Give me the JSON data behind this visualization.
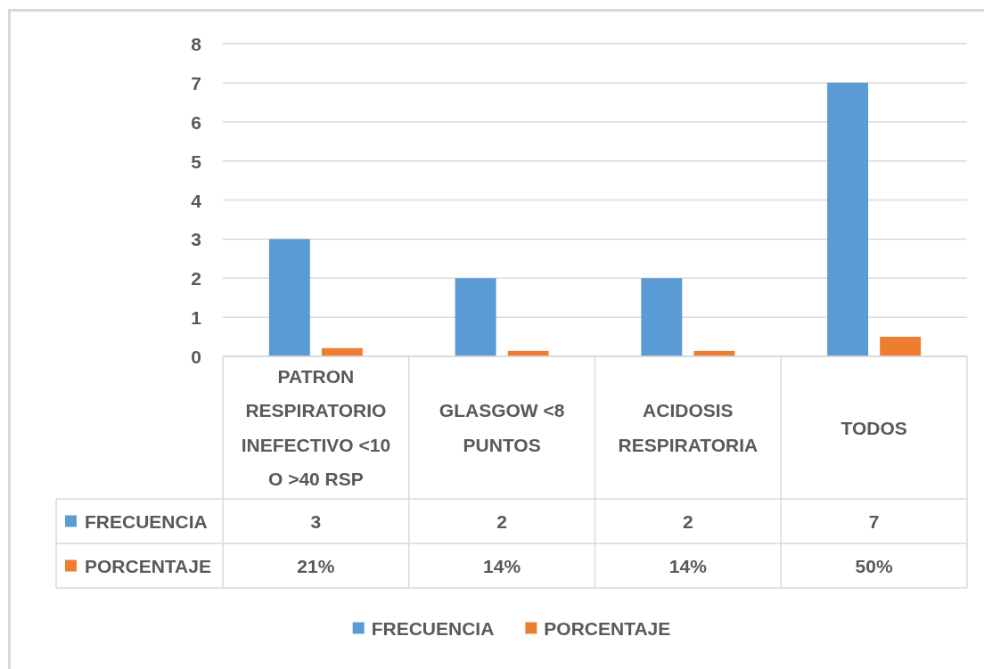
{
  "chart_data": {
    "type": "bar",
    "categories": [
      "PATRON RESPIRATORIO INEFECTIVO <10 O >40 RSP",
      "GLASGOW <8 PUNTOS",
      "ACIDOSIS RESPIRATORIA",
      "TODOS"
    ],
    "series": [
      {
        "name": "FRECUENCIA",
        "color": "#5b9bd5",
        "values": [
          3,
          2,
          2,
          7
        ],
        "value_labels": [
          "3",
          "2",
          "2",
          "7"
        ]
      },
      {
        "name": "PORCENTAJE",
        "color": "#ed7d31",
        "values": [
          0.21,
          0.14,
          0.14,
          0.5
        ],
        "value_labels": [
          "21%",
          "14%",
          "14%",
          "50%"
        ]
      }
    ],
    "ylim": [
      0,
      8
    ],
    "yticks": [
      0,
      1,
      2,
      3,
      4,
      5,
      6,
      7,
      8
    ],
    "grid": "y",
    "legend": "bottom"
  }
}
